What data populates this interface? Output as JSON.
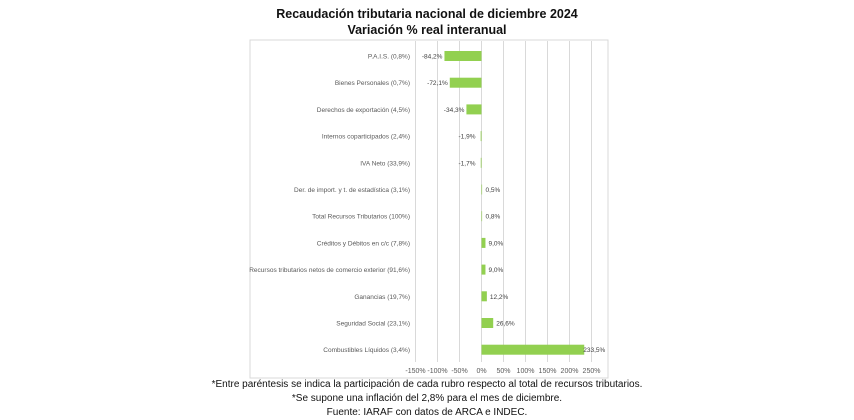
{
  "chart_data": {
    "type": "bar",
    "orientation": "horizontal",
    "title": "Recaudación tributaria nacional de diciembre 2024",
    "subtitle": "Variación % real interanual",
    "categories": [
      "P.A.I.S. (0,8%)",
      "Bienes Personales (0,7%)",
      "Derechos de exportación (4,5%)",
      "Internos coparticipados (2,4%)",
      "IVA Neto (33,9%)",
      "Der. de import. y t. de estadística (3,1%)",
      "Total Recursos Tributarios (100%)",
      "Créditos y Débitos en c/c (7,8%)",
      "Recursos tributarios netos de comercio exterior (91,6%)",
      "Ganancias (19,7%)",
      "Seguridad Social (23,1%)",
      "Combustibles Líquidos (3,4%)"
    ],
    "values": [
      -84.2,
      -72.1,
      -34.3,
      -1.9,
      -1.7,
      0.5,
      0.8,
      9.0,
      9.0,
      12.2,
      26.6,
      233.5
    ],
    "data_labels": [
      "-84,2%",
      "-72,1%",
      "-34,3%",
      "-1,9%",
      "-1,7%",
      "0,5%",
      "0,8%",
      "9,0%",
      "9,0%",
      "12,2%",
      "26,6%",
      "233,5%"
    ],
    "xlim": [
      -150,
      275
    ],
    "xticks": [
      -150,
      -100,
      -50,
      0,
      50,
      100,
      150,
      200,
      250
    ],
    "xtick_labels": [
      "-150%",
      "-100%",
      "-50%",
      "0%",
      "50%",
      "100%",
      "150%",
      "200%",
      "250%"
    ],
    "grid": true,
    "bar_color": "#92d050"
  },
  "notes": [
    "*Entre paréntesis se indica la participación de cada rubro respecto al total de recursos tributarios.",
    "*Se supone una inflación del 2,8% para el mes de diciembre.",
    "Fuente: IARAF con datos de ARCA e INDEC."
  ]
}
